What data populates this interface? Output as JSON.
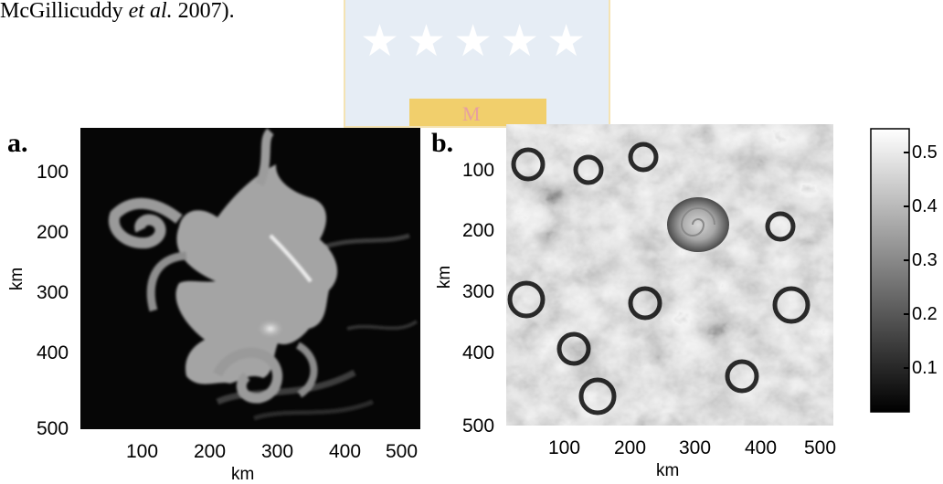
{
  "caption_fragment": {
    "prefix": "McGillicuddy ",
    "etal": "et al.",
    "suffix": " 2007)."
  },
  "watermark": {
    "stars": "★★★★★",
    "inner_mark": "M"
  },
  "chart_data": [
    {
      "type": "heatmap",
      "panel_label": "a.",
      "xlabel": "km",
      "ylabel": "km",
      "xlim": [
        0,
        500
      ],
      "ylim": [
        0,
        500
      ],
      "x_ticks": [
        "100",
        "200",
        "300",
        "400",
        "500"
      ],
      "y_ticks": [
        "100",
        "200",
        "300",
        "400",
        "500"
      ],
      "colormap": "grayscale",
      "y_axis_inverted": true
    },
    {
      "type": "heatmap",
      "panel_label": "b.",
      "xlabel": "km",
      "ylabel": "km",
      "xlim": [
        0,
        500
      ],
      "ylim": [
        0,
        500
      ],
      "x_ticks": [
        "100",
        "200",
        "300",
        "400",
        "500"
      ],
      "y_ticks": [
        "100",
        "200",
        "300",
        "400",
        "500"
      ],
      "colormap": "grayscale",
      "y_axis_inverted": true
    }
  ],
  "colorbar": {
    "ticks": [
      "0.5",
      "0.4",
      "0.3",
      "0.2",
      "0.1"
    ],
    "range": [
      0.05,
      0.58
    ],
    "colors": {
      "low": "#000000",
      "high": "#ffffff"
    }
  }
}
